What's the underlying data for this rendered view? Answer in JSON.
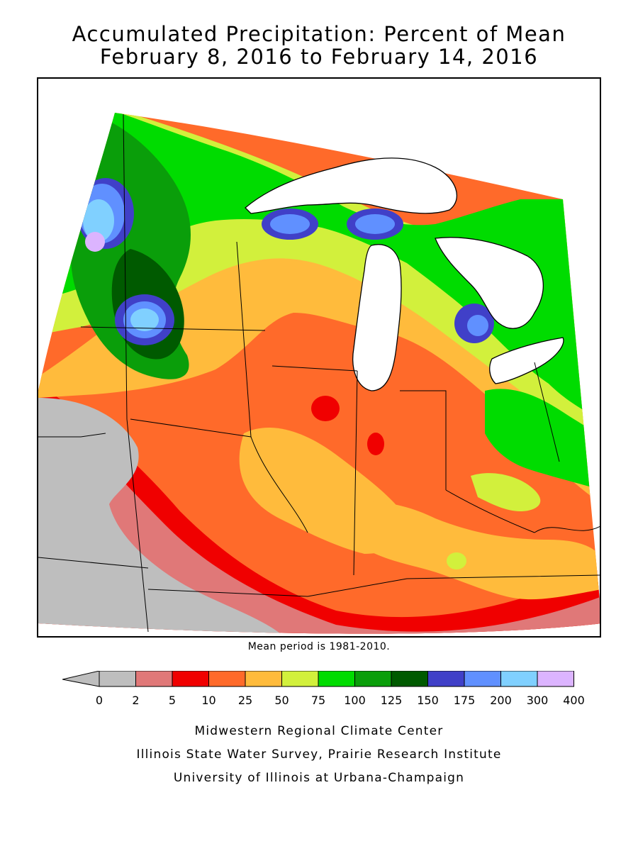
{
  "title": {
    "line1": "Accumulated Precipitation: Percent of Mean",
    "line2": "February 8, 2016 to February 14, 2016"
  },
  "map": {
    "region": "Midwest United States",
    "features": [
      "state-boundaries",
      "great-lakes",
      "precipitation-contours"
    ]
  },
  "note": "Mean period is 1981-2010.",
  "legend": {
    "colors": [
      "#bebebe",
      "#e07878",
      "#f00000",
      "#ff6a2a",
      "#ffbb3c",
      "#d2f03c",
      "#00dc00",
      "#0a9e0a",
      "#005a00",
      "#4040c8",
      "#6090ff",
      "#80d0ff",
      "#dcb4ff"
    ],
    "ticks": [
      "0",
      "2",
      "5",
      "10",
      "25",
      "50",
      "75",
      "100",
      "125",
      "150",
      "175",
      "200",
      "300",
      "400"
    ]
  },
  "footer": {
    "line1": "Midwestern Regional Climate Center",
    "line2": "Illinois State Water Survey, Prairie Research Institute",
    "line3": "University of Illinois at Urbana-Champaign"
  }
}
